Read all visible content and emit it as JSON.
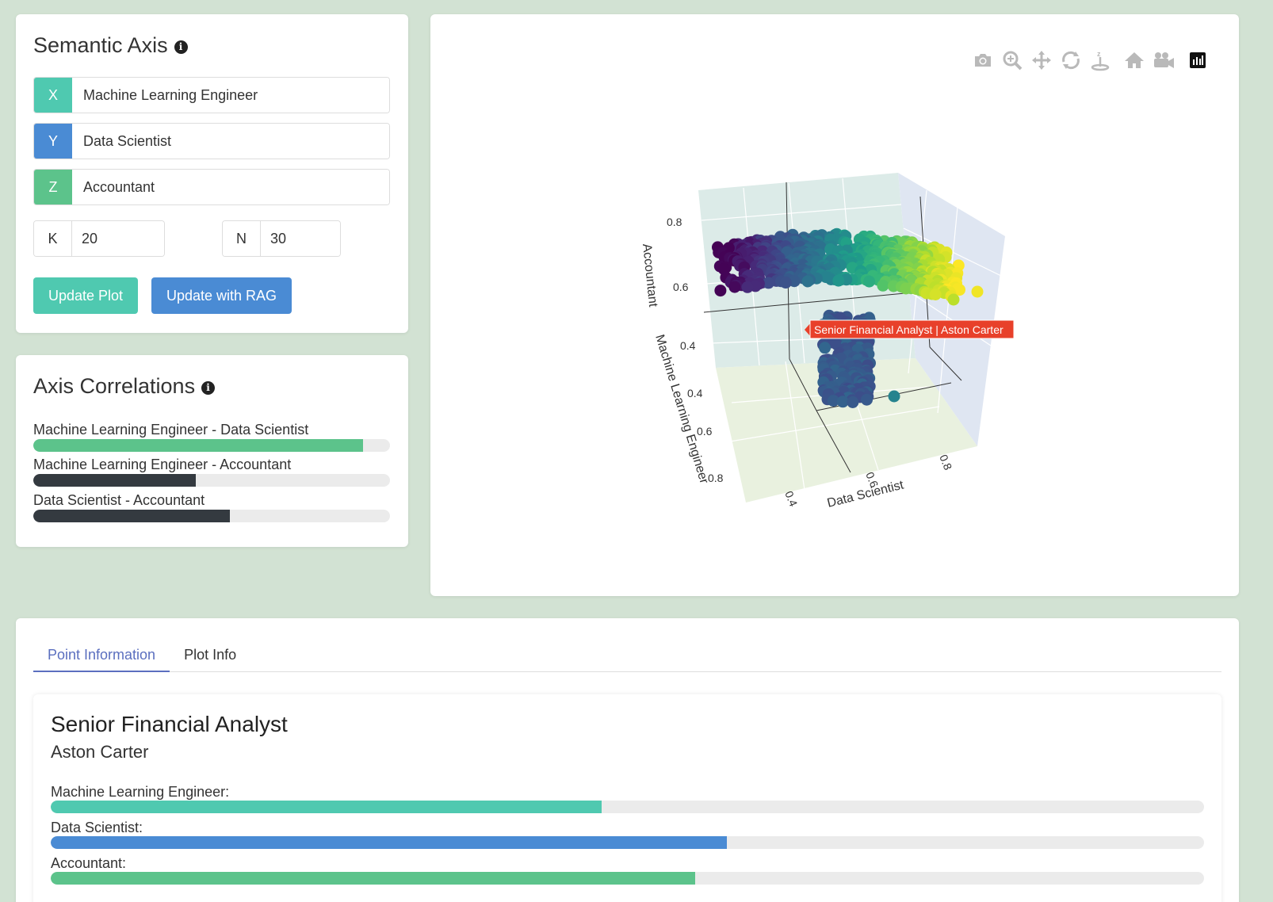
{
  "semantic_axis": {
    "title": "Semantic Axis",
    "x": {
      "tag": "X",
      "value": "Machine Learning Engineer",
      "color": "#4fc9b0"
    },
    "y": {
      "tag": "Y",
      "value": "Data Scientist",
      "color": "#4a8bd4"
    },
    "z": {
      "tag": "Z",
      "value": "Accountant",
      "color": "#5cc38b"
    },
    "k": {
      "tag": "K",
      "value": "20"
    },
    "n": {
      "tag": "N",
      "value": "30"
    },
    "update_plot_label": "Update Plot",
    "update_rag_label": "Update with RAG",
    "update_plot_color": "#4fc9b0",
    "update_rag_color": "#4a8bd4"
  },
  "correlations": {
    "title": "Axis Correlations",
    "items": [
      {
        "label": "Machine Learning Engineer - Data Scientist",
        "value": 0.925,
        "color": "#5cc38b"
      },
      {
        "label": "Machine Learning Engineer - Accountant",
        "value": 0.455,
        "color": "#343a40"
      },
      {
        "label": "Data Scientist - Accountant",
        "value": 0.55,
        "color": "#343a40"
      }
    ]
  },
  "plot": {
    "toolbar": [
      "camera-icon",
      "zoom-icon",
      "pan-icon",
      "orbit-icon",
      "turntable-icon",
      "home-icon",
      "video-camera-icon",
      "plotly-logo-icon"
    ],
    "hover_label": "Senior Financial Analyst | Aston Carter",
    "hover_color": "#e8402a",
    "colorscale": "viridis",
    "z_axis": {
      "title": "Accountant",
      "ticks": [
        "0.8",
        "0.6",
        "0.4"
      ]
    },
    "x_axis": {
      "title": "Machine Learning Engineer",
      "ticks": [
        "0.4",
        "0.6",
        "0.8"
      ]
    },
    "y_axis": {
      "title": "Data Scientist",
      "ticks": [
        "0.4",
        "0.6",
        "0.8"
      ]
    }
  },
  "tabs": [
    {
      "label": "Point Information",
      "active": true
    },
    {
      "label": "Plot Info",
      "active": false
    }
  ],
  "point_info": {
    "title": "Senior Financial Analyst",
    "company": "Aston Carter",
    "scores": [
      {
        "label": "Machine Learning Engineer:",
        "value": 0.478,
        "color": "#4fc9b0"
      },
      {
        "label": "Data Scientist:",
        "value": 0.586,
        "color": "#4a8bd4"
      },
      {
        "label": "Accountant:",
        "value": 0.559,
        "color": "#5cc38b"
      }
    ]
  }
}
